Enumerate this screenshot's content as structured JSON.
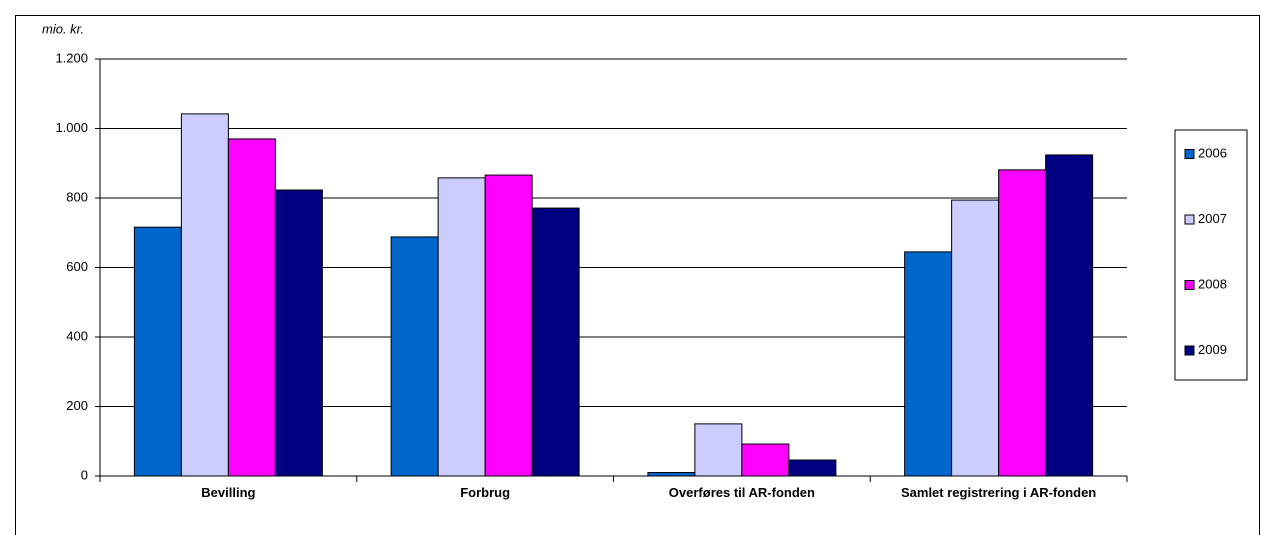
{
  "chart_data": {
    "type": "bar",
    "y_label": "mio. kr.",
    "categories": [
      "Bevilling",
      "Forbrug",
      "Overføres til AR-fonden",
      "Samlet registrering i AR-fonden"
    ],
    "series": [
      {
        "name": "2006",
        "color": "#0066cc",
        "values": [
          716,
          688,
          10,
          645
        ]
      },
      {
        "name": "2007",
        "color": "#ccccff",
        "values": [
          1042,
          858,
          150,
          794
        ]
      },
      {
        "name": "2008",
        "color": "#ff00ff",
        "values": [
          970,
          866,
          92,
          881
        ]
      },
      {
        "name": "2009",
        "color": "#000080",
        "values": [
          823,
          771,
          46,
          924
        ]
      }
    ],
    "ylim": [
      0,
      1200
    ],
    "yticks": [
      0,
      200,
      400,
      600,
      800,
      {
        "value": 1000,
        "label": "1.000"
      },
      {
        "value": 1200,
        "label": "1.200"
      }
    ],
    "grid": true,
    "legend": "right"
  }
}
